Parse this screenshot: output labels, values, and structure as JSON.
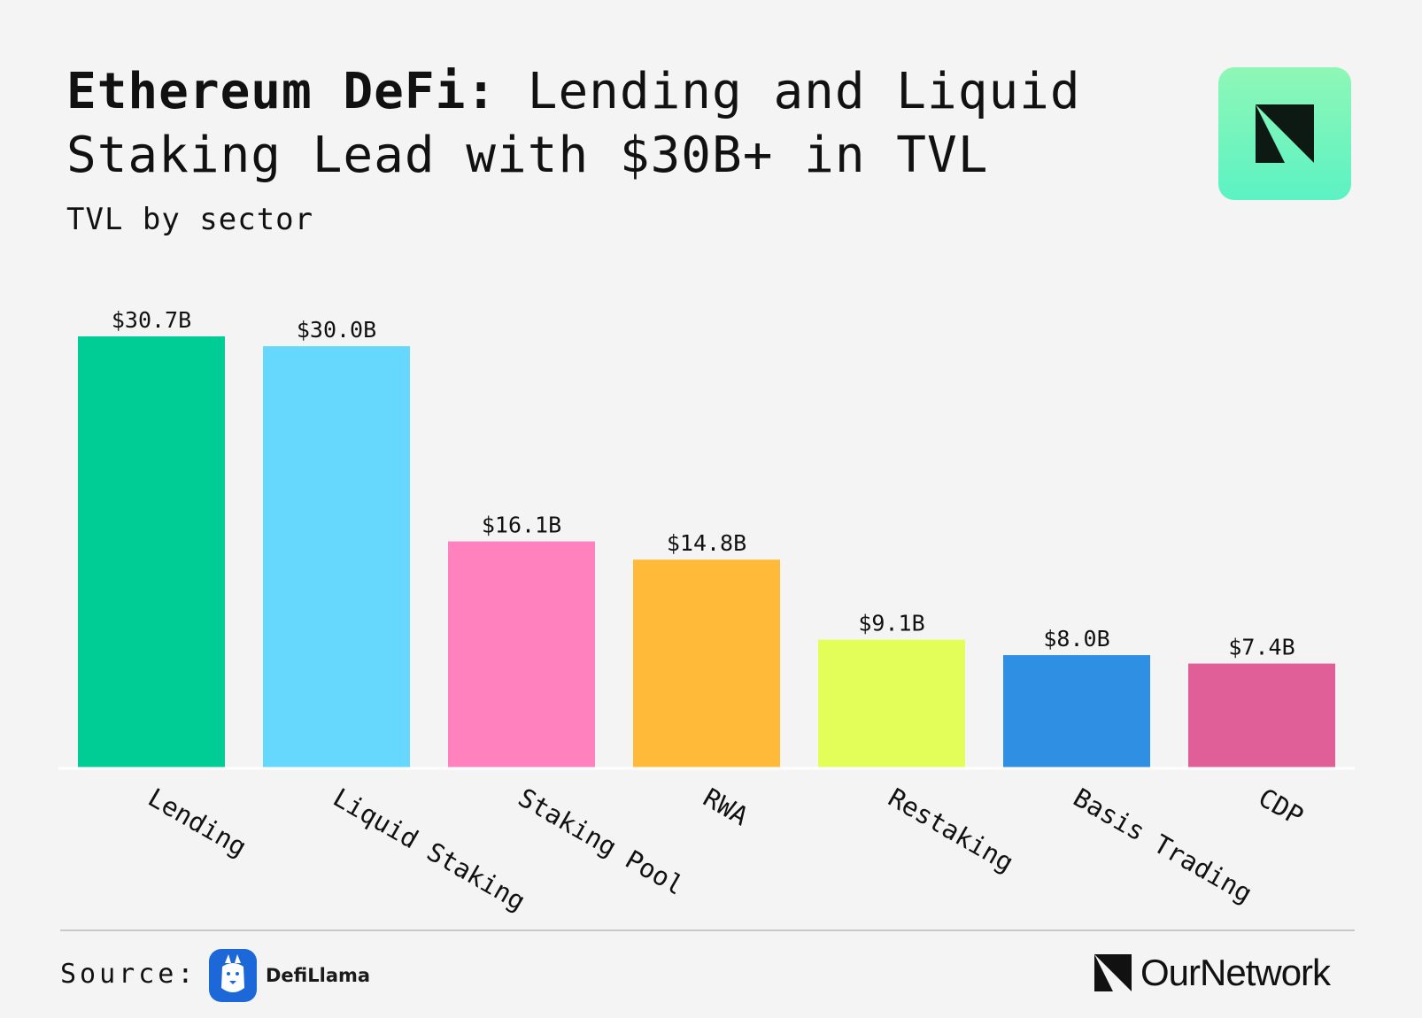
{
  "header": {
    "title_bold": "Ethereum DeFi:",
    "title_rest": " Lending and Liquid Staking Lead with $30B+ in TVL",
    "subtitle": "TVL by sector"
  },
  "footer": {
    "source_label": "Source:",
    "source_name": "DefiLlama",
    "brand_name": "OurNetwork"
  },
  "icons": {
    "brand_badge": "ournetwork-logo-icon",
    "source_logo": "defillama-llama-icon"
  },
  "colors": {
    "background": "#f4f4f4",
    "badge": "#6ff4bd"
  },
  "chart_data": {
    "type": "bar",
    "title": "Ethereum DeFi: Lending and Liquid Staking Lead with $30B+ in TVL",
    "subtitle": "TVL by sector",
    "xlabel": "",
    "ylabel": "",
    "ylim": [
      0,
      30.7
    ],
    "grid": false,
    "categories": [
      "Lending",
      "Liquid Staking",
      "Staking Pool",
      "RWA",
      "Restaking",
      "Basis Trading",
      "CDP"
    ],
    "values": [
      30.7,
      30.0,
      16.1,
      14.8,
      9.1,
      8.0,
      7.4
    ],
    "value_labels": [
      "$30.7B",
      "$30.0B",
      "$16.1B",
      "$14.8B",
      "$9.1B",
      "$8.0B",
      "$7.4B"
    ],
    "colors": [
      "#00cc96",
      "#66d8fd",
      "#ff82bf",
      "#ffba39",
      "#e3fe58",
      "#2f8fe3",
      "#e05f99"
    ]
  }
}
